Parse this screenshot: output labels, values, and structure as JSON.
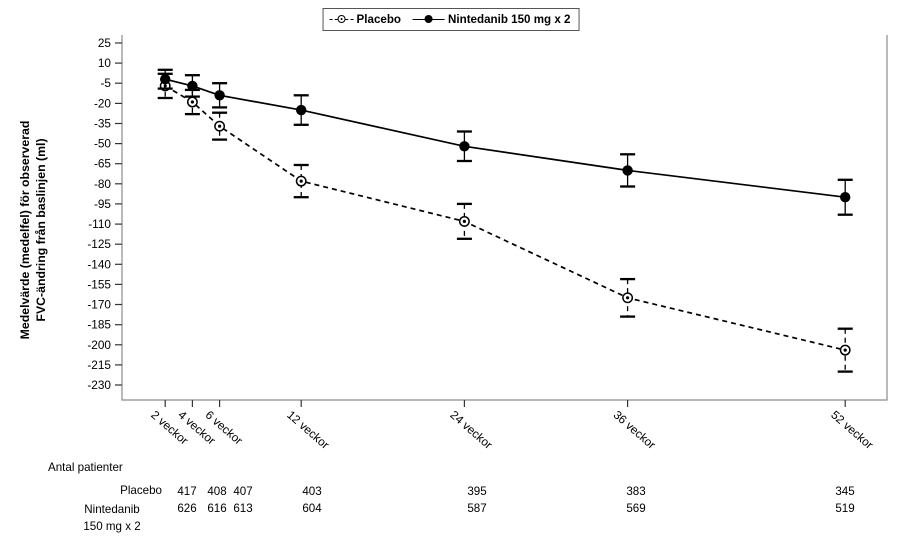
{
  "chart_data": {
    "type": "line",
    "title": "",
    "ylabel": "Medelvärde (medelfel) för observerad\nFVC-ändring från baslinjen (ml)",
    "xlabel": "",
    "x_weeks": [
      2,
      4,
      6,
      12,
      24,
      36,
      52
    ],
    "x_tick_labels": [
      "2 veckor",
      "4 veckor",
      "6 veckor",
      "12 veckor",
      "24 veckor",
      "36 veckor",
      "52 veckor"
    ],
    "y_ticks": [
      25,
      10,
      -5,
      -20,
      -35,
      -50,
      -65,
      -80,
      -95,
      -110,
      -125,
      -140,
      -155,
      -170,
      -185,
      -200,
      -215,
      -230
    ],
    "ylim": [
      -237,
      32
    ],
    "grid": false,
    "legend_position": "top-center",
    "series": [
      {
        "name": "Placebo",
        "line": "dashed",
        "marker": "open-circle-dot",
        "values": [
          -7,
          -19,
          -37,
          -78,
          -108,
          -165,
          -204
        ],
        "stderr": [
          9,
          9,
          10,
          12,
          13,
          14,
          16
        ]
      },
      {
        "name": "Nintedanib 150 mg x 2",
        "line": "solid",
        "marker": "filled-circle",
        "values": [
          -2,
          -7,
          -14,
          -25,
          -52,
          -70,
          -90
        ],
        "stderr": [
          7,
          8,
          9,
          11,
          11,
          12,
          13
        ]
      }
    ]
  },
  "patients_table": {
    "header": "Antal patienter",
    "rows": [
      {
        "label": "Placebo",
        "counts": [
          "417",
          "408",
          "407",
          "403",
          "395",
          "383",
          "345"
        ]
      },
      {
        "label": "Nintedanib\n150 mg x 2",
        "counts": [
          "626",
          "616",
          "613",
          "604",
          "587",
          "569",
          "519"
        ]
      }
    ]
  },
  "colors": {
    "series": "#000000",
    "frame": "#8c8c8c",
    "ticks": "#333333",
    "background": "#ffffff",
    "text": "#000000"
  }
}
